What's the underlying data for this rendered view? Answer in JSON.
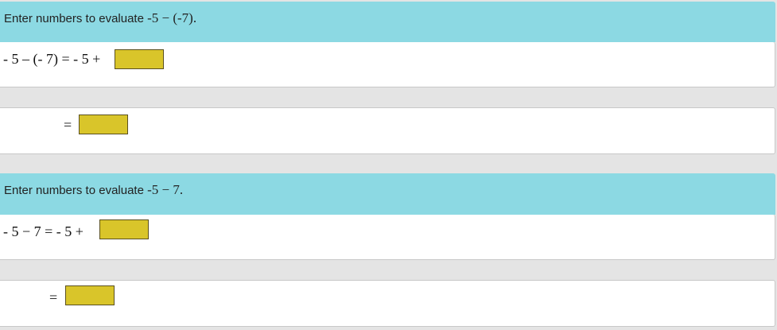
{
  "problems": [
    {
      "prompt": "Enter numbers to evaluate",
      "expr": "-5 − (-7).",
      "step1": "- 5 – (- 7) = - 5 +",
      "step2": "=",
      "input1": "",
      "input2": ""
    },
    {
      "prompt": "Enter numbers to evaluate",
      "expr": "-5 − 7.",
      "step1": "- 5 − 7 = - 5 +",
      "step2": "=",
      "input1": "",
      "input2": ""
    }
  ],
  "colors": {
    "header": "#8cd9e3",
    "input": "#d9c52a"
  }
}
